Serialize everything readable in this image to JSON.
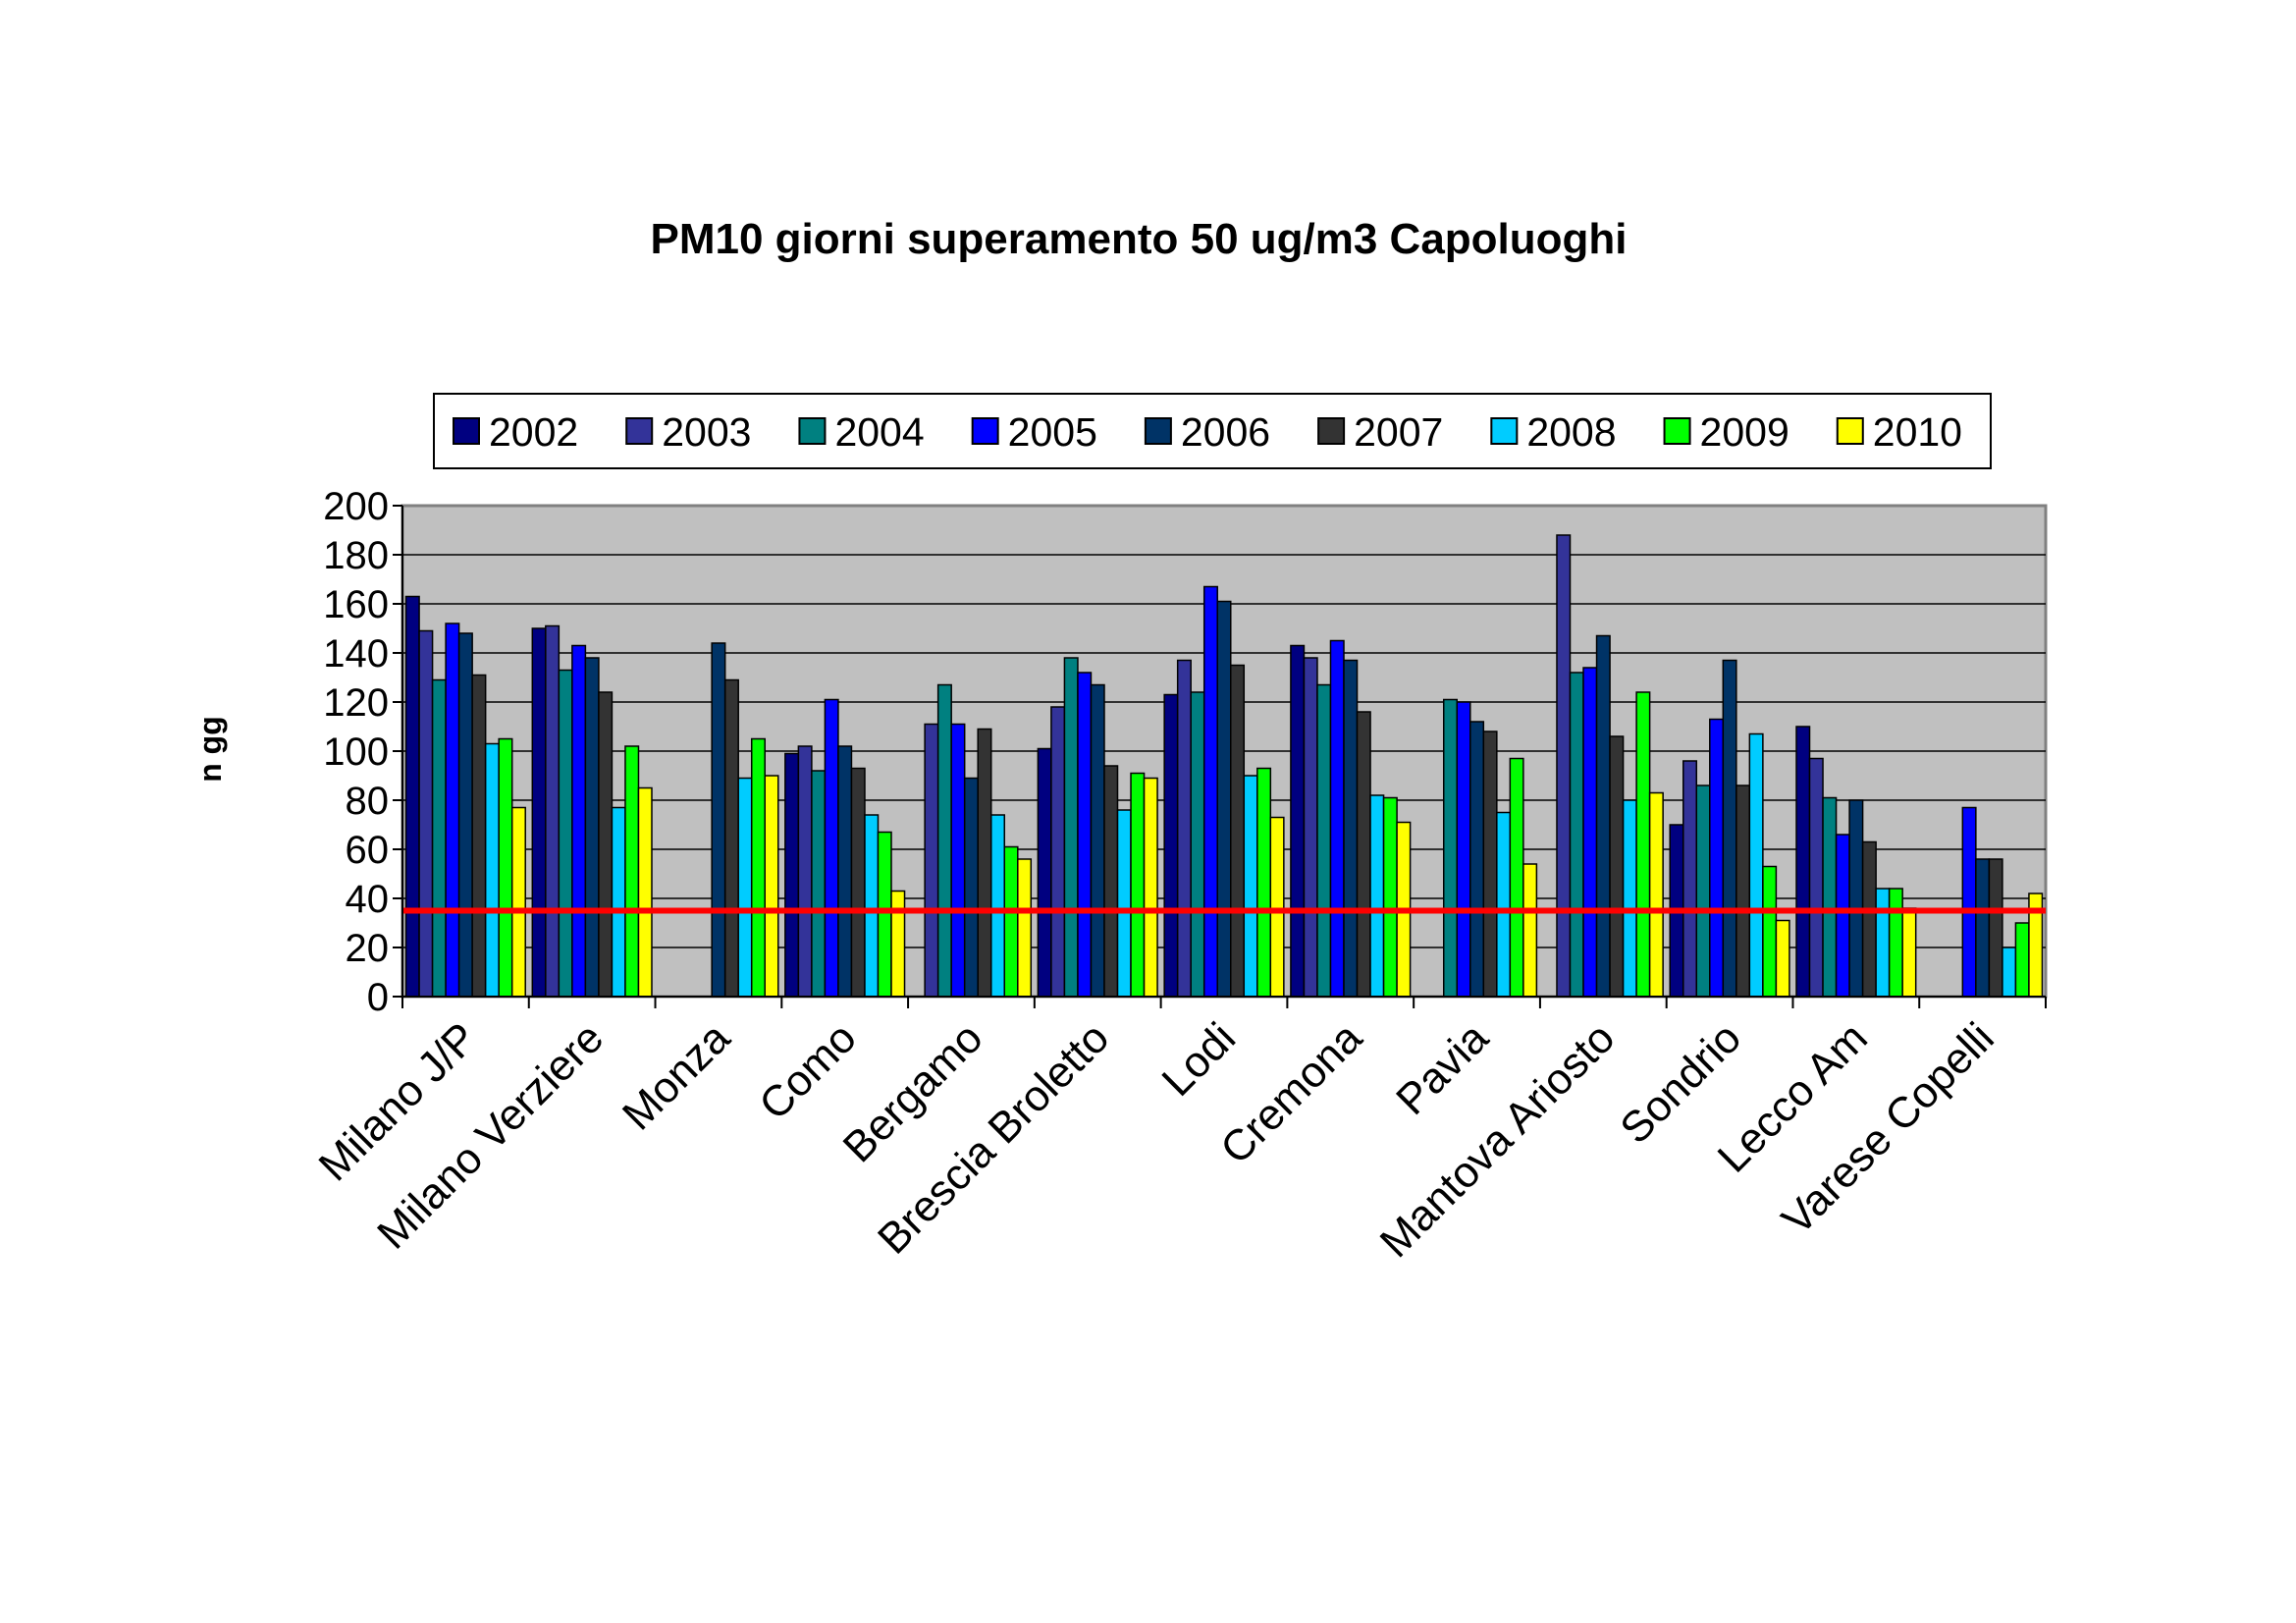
{
  "chart_data": {
    "type": "bar",
    "title": "PM10 giorni superamento 50 ug/m3 Capoluoghi",
    "ylabel": "n gg",
    "xlabel": "",
    "ylim": [
      0,
      200
    ],
    "yticks": [
      "0",
      "20",
      "40",
      "60",
      "80",
      "100",
      "120",
      "140",
      "160",
      "180",
      "200"
    ],
    "grid": true,
    "legend_position": "top",
    "plot_background": "#c0c0c0",
    "reference_line": {
      "value": 35,
      "color": "#ff0000"
    },
    "categories": [
      "Milano J/P",
      "Milano Verziere",
      "Monza",
      "Como",
      "Bergamo",
      "Brescia Broletto",
      "Lodi",
      "Cremona",
      "Pavia",
      "Mantova Ariosto",
      "Sondrio",
      "Lecco Am",
      "Varese Copelli"
    ],
    "series": [
      {
        "name": "2002",
        "color": "#000080",
        "values": [
          163,
          150,
          null,
          99,
          null,
          101,
          123,
          143,
          null,
          null,
          70,
          110,
          null
        ]
      },
      {
        "name": "2003",
        "color": "#333399",
        "values": [
          149,
          151,
          null,
          102,
          111,
          118,
          137,
          138,
          null,
          188,
          96,
          97,
          null
        ]
      },
      {
        "name": "2004",
        "color": "#008080",
        "values": [
          129,
          133,
          null,
          92,
          127,
          138,
          124,
          127,
          121,
          132,
          86,
          81,
          null
        ]
      },
      {
        "name": "2005",
        "color": "#0000ff",
        "values": [
          152,
          143,
          null,
          121,
          111,
          132,
          167,
          145,
          120,
          134,
          113,
          66,
          77
        ]
      },
      {
        "name": "2006",
        "color": "#003366",
        "values": [
          148,
          138,
          144,
          102,
          89,
          127,
          161,
          137,
          112,
          147,
          137,
          80,
          56
        ]
      },
      {
        "name": "2007",
        "color": "#333333",
        "values": [
          131,
          124,
          129,
          93,
          109,
          94,
          135,
          116,
          108,
          106,
          86,
          63,
          56
        ]
      },
      {
        "name": "2008",
        "color": "#00ccff",
        "values": [
          103,
          77,
          89,
          74,
          74,
          76,
          90,
          82,
          75,
          80,
          107,
          44,
          20
        ]
      },
      {
        "name": "2009",
        "color": "#00ff00",
        "values": [
          105,
          102,
          105,
          67,
          61,
          91,
          93,
          81,
          97,
          124,
          53,
          44,
          30
        ]
      },
      {
        "name": "2010",
        "color": "#ffff00",
        "values": [
          77,
          85,
          90,
          43,
          56,
          89,
          73,
          71,
          54,
          83,
          31,
          36,
          42
        ]
      }
    ]
  }
}
